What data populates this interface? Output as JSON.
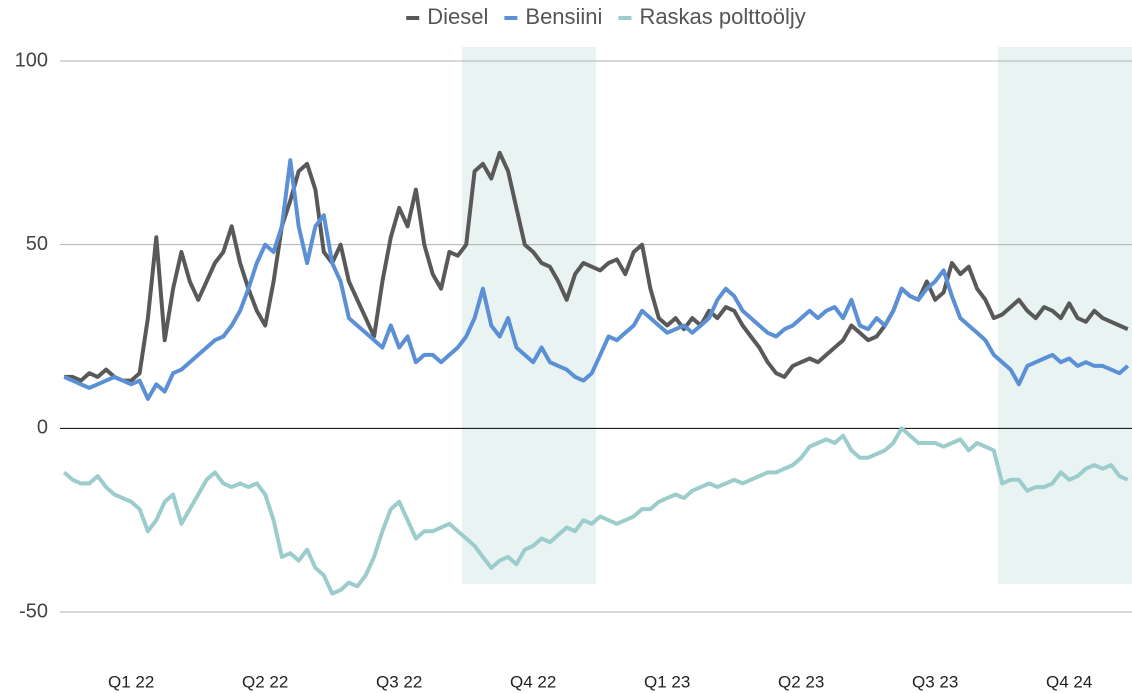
{
  "chart_data": {
    "type": "line",
    "categories": [
      null,
      null,
      null,
      null,
      null,
      null,
      null,
      null,
      "Q1 22",
      null,
      null,
      null,
      null,
      null,
      null,
      null,
      null,
      null,
      null,
      null,
      null,
      null,
      null,
      null,
      "Q2 22",
      null,
      null,
      null,
      null,
      null,
      null,
      null,
      null,
      null,
      null,
      null,
      null,
      null,
      null,
      null,
      "Q3 22",
      null,
      null,
      null,
      null,
      null,
      null,
      null,
      null,
      null,
      null,
      null,
      null,
      null,
      null,
      null,
      "Q4 22",
      null,
      null,
      null,
      null,
      null,
      null,
      null,
      null,
      null,
      null,
      null,
      null,
      null,
      null,
      null,
      "Q1 23",
      null,
      null,
      null,
      null,
      null,
      null,
      null,
      null,
      null,
      null,
      null,
      null,
      null,
      null,
      null,
      "Q2 23",
      null,
      null,
      null,
      null,
      null,
      null,
      null,
      null,
      null,
      null,
      null,
      null,
      null,
      null,
      null,
      "Q3 23",
      null,
      null,
      null,
      null,
      null,
      null,
      null,
      null,
      null,
      null,
      null,
      null,
      null,
      null,
      null,
      "Q4 24",
      null,
      null,
      null,
      null,
      null,
      null,
      null
    ],
    "series": [
      {
        "name": "Diesel",
        "color": "#595959",
        "values": [
          14,
          14,
          13,
          15,
          14,
          16,
          14,
          13,
          13,
          15,
          30,
          52,
          24,
          38,
          48,
          40,
          35,
          40,
          45,
          48,
          55,
          45,
          38,
          32,
          28,
          40,
          55,
          62,
          70,
          72,
          65,
          48,
          45,
          50,
          40,
          35,
          30,
          25,
          40,
          52,
          60,
          55,
          65,
          50,
          42,
          38,
          48,
          47,
          50,
          70,
          72,
          68,
          75,
          70,
          60,
          50,
          48,
          45,
          44,
          40,
          35,
          42,
          45,
          44,
          43,
          45,
          46,
          42,
          48,
          50,
          38,
          30,
          28,
          30,
          27,
          30,
          28,
          32,
          30,
          33,
          32,
          28,
          25,
          22,
          18,
          15,
          14,
          17,
          18,
          19,
          18,
          20,
          22,
          24,
          28,
          26,
          24,
          25,
          28,
          32,
          38,
          36,
          35,
          40,
          35,
          37,
          45,
          42,
          44,
          38,
          35,
          30,
          31,
          33,
          35,
          32,
          30,
          33,
          32,
          30,
          34,
          30,
          29,
          32,
          30,
          29,
          28,
          27
        ]
      },
      {
        "name": "Bensiini",
        "color": "#5b8fd6",
        "values": [
          14,
          13,
          12,
          11,
          12,
          13,
          14,
          13,
          12,
          13,
          8,
          12,
          10,
          15,
          16,
          18,
          20,
          22,
          24,
          25,
          28,
          32,
          38,
          45,
          50,
          48,
          55,
          73,
          55,
          45,
          55,
          58,
          45,
          40,
          30,
          28,
          26,
          24,
          22,
          28,
          22,
          25,
          18,
          20,
          20,
          18,
          20,
          22,
          25,
          30,
          38,
          28,
          25,
          30,
          22,
          20,
          18,
          22,
          18,
          17,
          16,
          14,
          13,
          15,
          20,
          25,
          24,
          26,
          28,
          32,
          30,
          28,
          26,
          27,
          28,
          26,
          28,
          30,
          35,
          38,
          36,
          32,
          30,
          28,
          26,
          25,
          27,
          28,
          30,
          32,
          30,
          32,
          33,
          30,
          35,
          28,
          27,
          30,
          28,
          32,
          38,
          36,
          35,
          38,
          40,
          43,
          36,
          30,
          28,
          26,
          24,
          20,
          18,
          16,
          12,
          17,
          18,
          19,
          20,
          18,
          19,
          17,
          18,
          17,
          17,
          16,
          15,
          17
        ]
      },
      {
        "name": "Raskas polttoöljy",
        "color": "#9ccccc",
        "values": [
          -12,
          -14,
          -15,
          -15,
          -13,
          -16,
          -18,
          -19,
          -20,
          -22,
          -28,
          -25,
          -20,
          -18,
          -26,
          -22,
          -18,
          -14,
          -12,
          -15,
          -16,
          -15,
          -16,
          -15,
          -18,
          -25,
          -35,
          -34,
          -36,
          -33,
          -38,
          -40,
          -45,
          -44,
          -42,
          -43,
          -40,
          -35,
          -28,
          -22,
          -20,
          -25,
          -30,
          -28,
          -28,
          -27,
          -26,
          -28,
          -30,
          -32,
          -35,
          -38,
          -36,
          -35,
          -37,
          -33,
          -32,
          -30,
          -31,
          -29,
          -27,
          -28,
          -25,
          -26,
          -24,
          -25,
          -26,
          -25,
          -24,
          -22,
          -22,
          -20,
          -19,
          -18,
          -19,
          -17,
          -16,
          -15,
          -16,
          -15,
          -14,
          -15,
          -14,
          -13,
          -12,
          -12,
          -11,
          -10,
          -8,
          -5,
          -4,
          -3,
          -4,
          -2,
          -6,
          -8,
          -8,
          -7,
          -6,
          -4,
          0,
          -2,
          -4,
          -4,
          -4,
          -5,
          -4,
          -3,
          -6,
          -4,
          -5,
          -6,
          -15,
          -14,
          -14,
          -17,
          -16,
          -16,
          -15,
          -12,
          -14,
          -13,
          -11,
          -10,
          -11,
          -10,
          -13,
          -14
        ]
      }
    ],
    "ylim": [
      -50,
      100
    ],
    "yticks": [
      -50,
      0,
      50,
      100
    ],
    "grid": true,
    "highlight_ranges": [
      [
        48,
        63
      ],
      [
        112,
        127
      ]
    ],
    "highlight_color": "#e9f3f2",
    "legend": "top"
  }
}
